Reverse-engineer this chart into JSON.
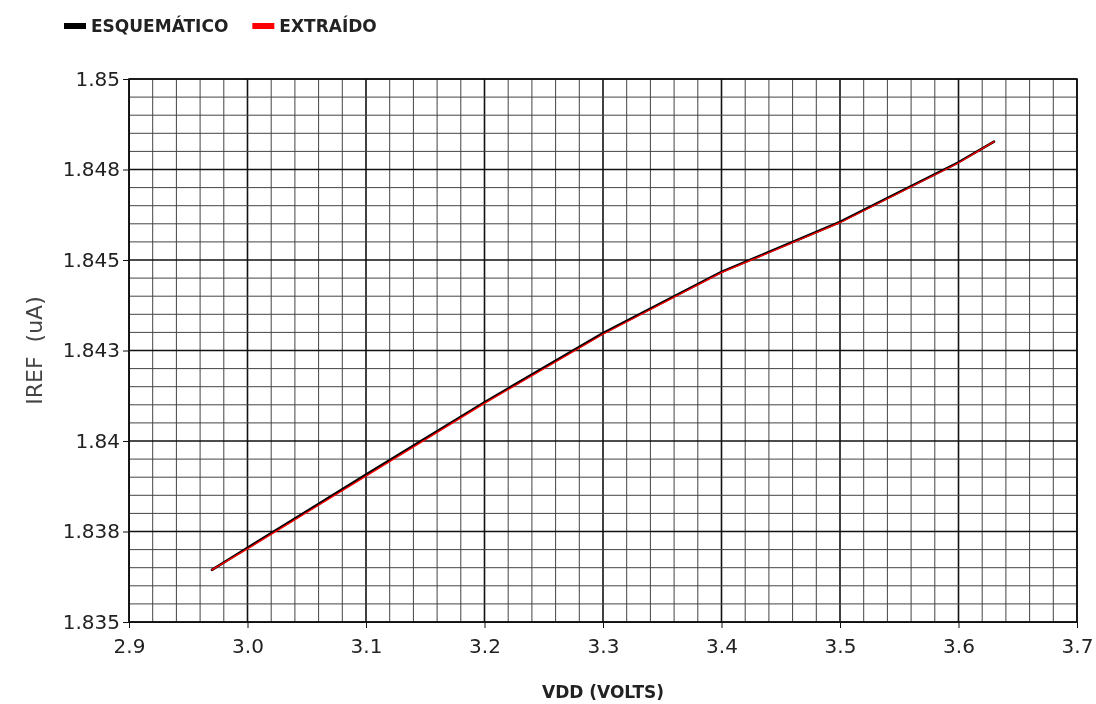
{
  "chart_data": {
    "type": "line",
    "xlabel": "VDD (VOLTS)",
    "ylabel": "IREF  (uA)",
    "x": [
      2.97,
      3.0,
      3.1,
      3.2,
      3.3,
      3.4,
      3.5,
      3.6,
      3.63
    ],
    "series": [
      {
        "name": "ESQUEMÁTICO",
        "color": "#000000",
        "values": [
          1.83644,
          1.83705,
          1.83907,
          1.84107,
          1.84298,
          1.84467,
          1.84605,
          1.8477,
          1.84827
        ]
      },
      {
        "name": "EXTRAÍDO",
        "color": "#ff0000",
        "values": [
          1.83644,
          1.83702,
          1.83903,
          1.84104,
          1.84295,
          1.84465,
          1.84603,
          1.84768,
          1.84827
        ]
      }
    ],
    "xlim": [
      2.9,
      3.7
    ],
    "xticks": [
      {
        "value": 2.9,
        "label": "2.9"
      },
      {
        "value": 3.0,
        "label": "3.0"
      },
      {
        "value": 3.1,
        "label": "3.1"
      },
      {
        "value": 3.2,
        "label": "3.2"
      },
      {
        "value": 3.3,
        "label": "3.3"
      },
      {
        "value": 3.4,
        "label": "3.4"
      },
      {
        "value": 3.5,
        "label": "3.5"
      },
      {
        "value": 3.6,
        "label": "3.6"
      },
      {
        "value": 3.7,
        "label": "3.7"
      }
    ],
    "ylim": [
      1.835,
      1.85
    ],
    "yticks": [
      1.835,
      {
        "value": 1.8375,
        "label": "1.838"
      },
      1.84,
      {
        "value": 1.8425,
        "label": "1.843"
      },
      1.845,
      {
        "value": 1.8475,
        "label": "1.848"
      },
      1.85
    ],
    "grid": true,
    "legend": "top left",
    "marker": "none",
    "line_style": "solid"
  }
}
